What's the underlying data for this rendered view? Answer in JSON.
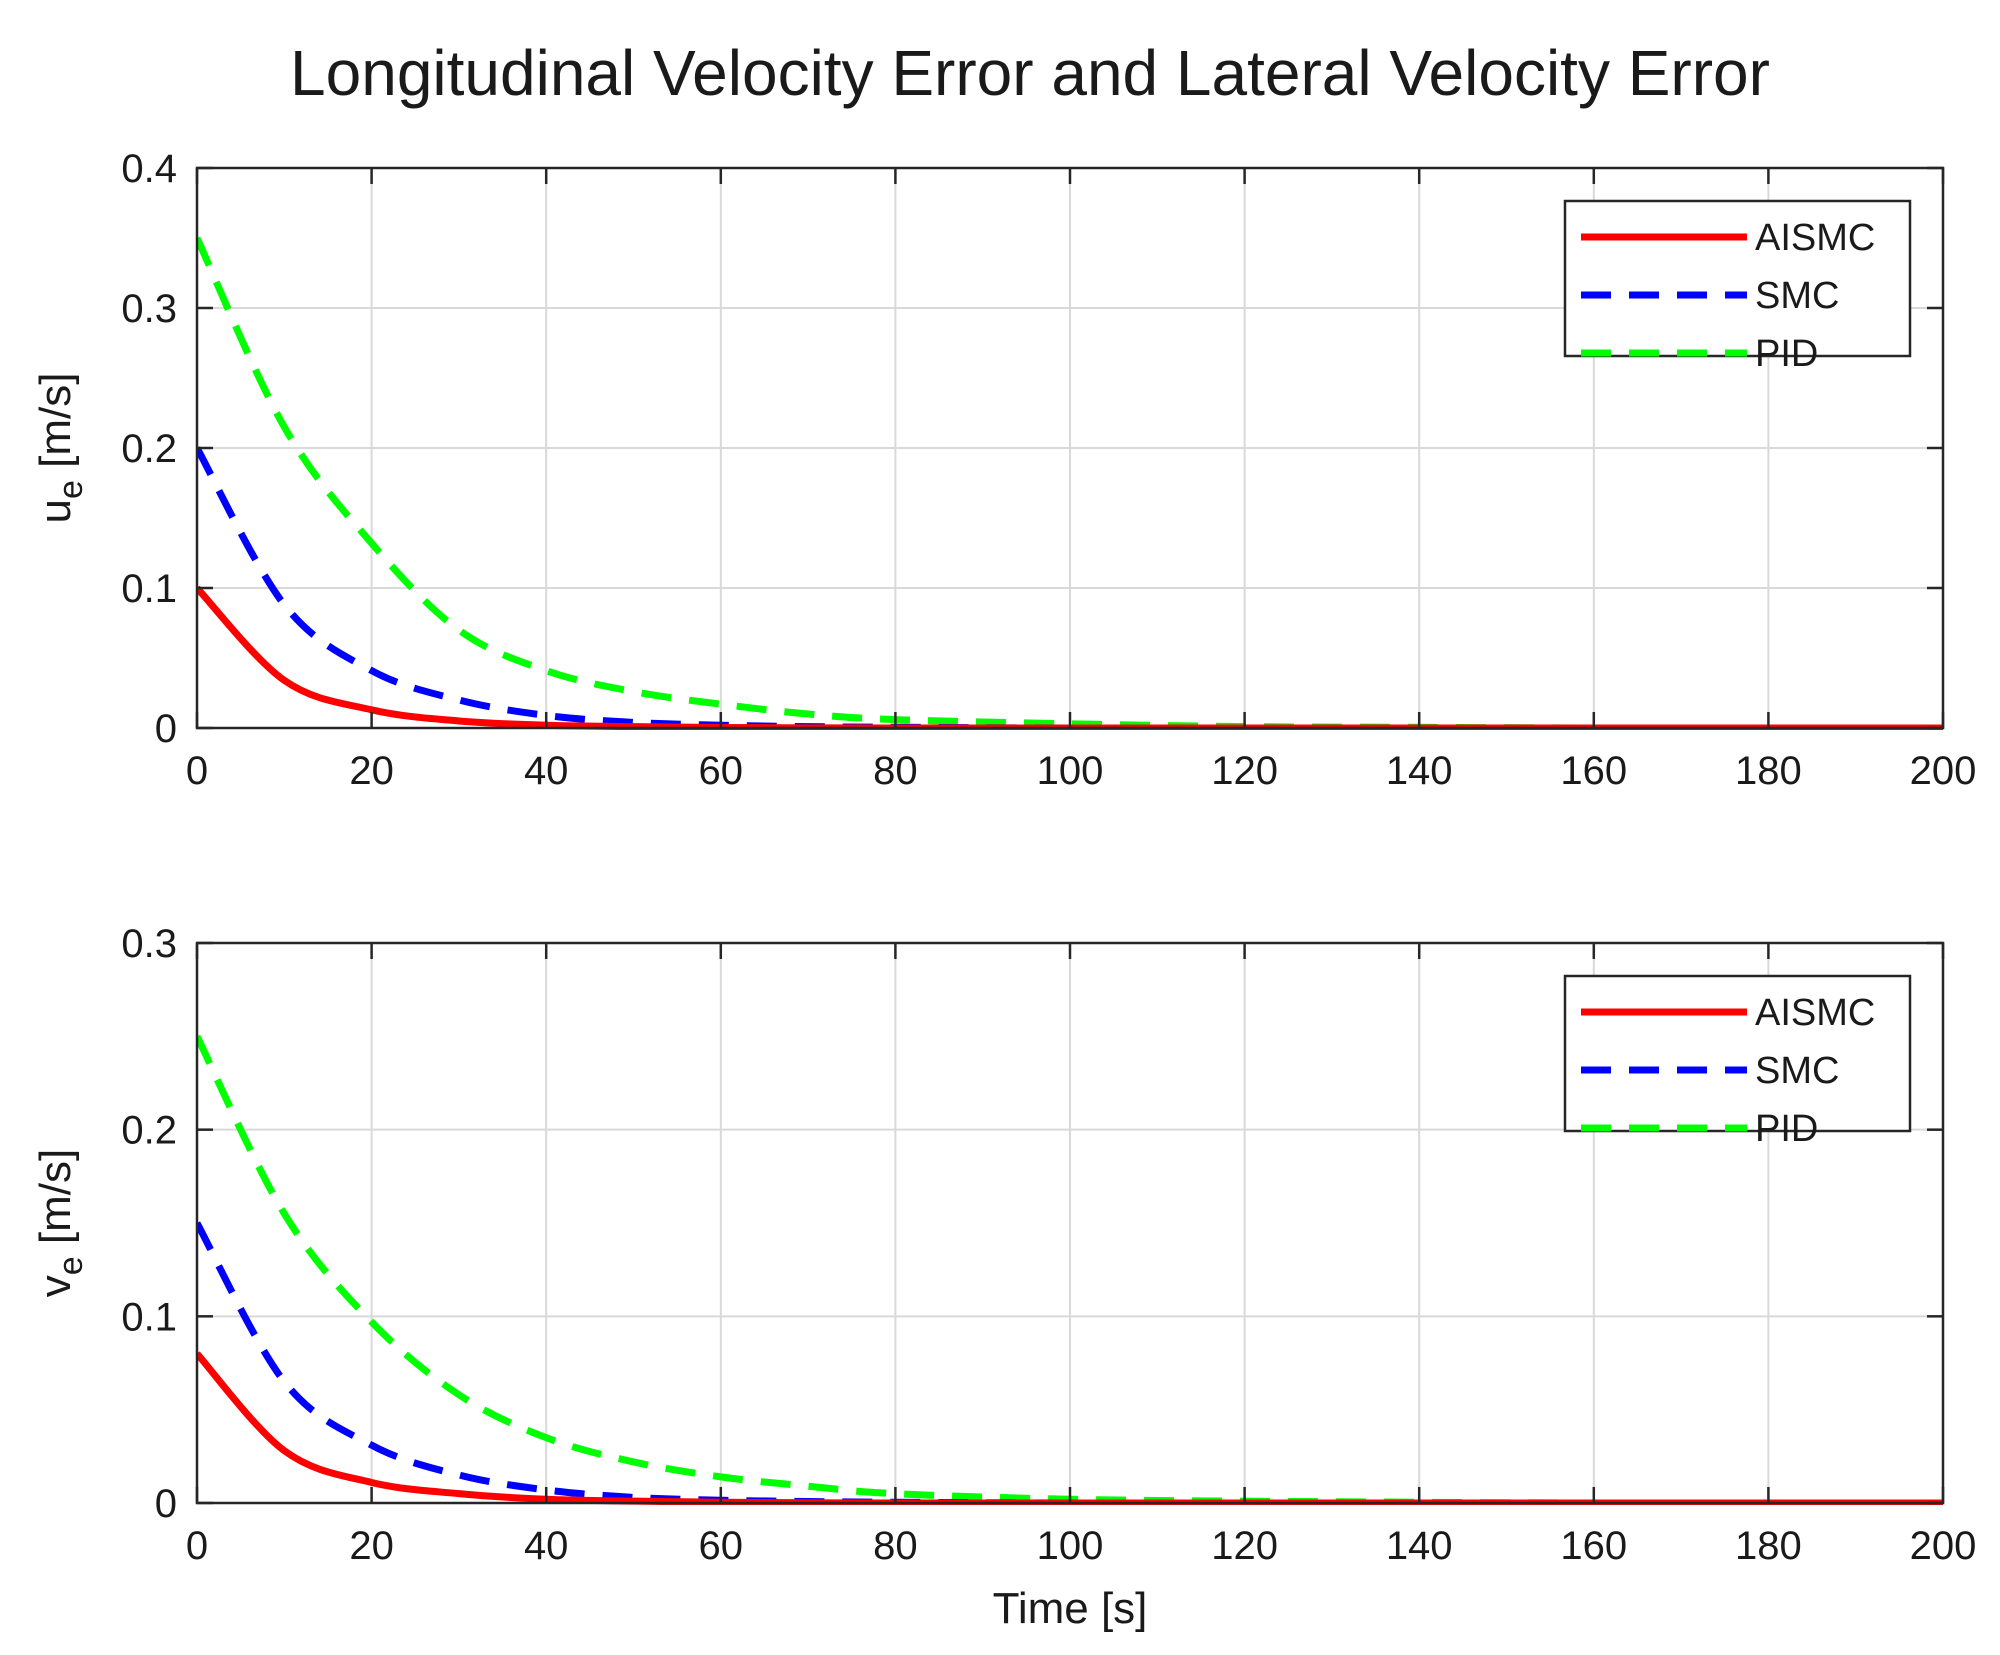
{
  "figure_title": "Longitudinal Velocity Error and Lateral Velocity Error",
  "chart_data": [
    {
      "type": "line",
      "ylabel_main": "u",
      "ylabel_sub": "e",
      "ylabel_unit": "[m/s]",
      "xlabel": "",
      "xlim": [
        0,
        200
      ],
      "ylim": [
        0,
        0.4
      ],
      "x_ticks": [
        0,
        20,
        40,
        60,
        80,
        100,
        120,
        140,
        160,
        180,
        200
      ],
      "x_tick_labels": [
        "0",
        "20",
        "40",
        "60",
        "80",
        "100",
        "120",
        "140",
        "160",
        "180",
        "200"
      ],
      "y_ticks": [
        0,
        0.1,
        0.2,
        0.3,
        0.4
      ],
      "y_tick_labels": [
        "0",
        "0.1",
        "0.2",
        "0.3",
        "0.4"
      ],
      "grid": true,
      "legend_position": "top-right",
      "x": [
        0,
        10,
        20,
        30,
        40,
        50,
        60,
        70,
        80,
        100,
        120,
        140,
        160,
        180,
        200
      ],
      "series": [
        {
          "name": "AISMC",
          "color": "#ff0000",
          "style": "solid",
          "values": [
            0.1,
            0.034,
            0.013,
            0.005,
            0.002,
            0.001,
            0.0004,
            0.0001,
            0,
            0,
            0,
            0,
            0,
            0,
            0
          ]
        },
        {
          "name": "SMC",
          "color": "#0000ff",
          "style": "dashed",
          "values": [
            0.2,
            0.088,
            0.041,
            0.02,
            0.009,
            0.004,
            0.002,
            0.001,
            0.0005,
            0,
            0,
            0,
            0,
            0,
            0
          ]
        },
        {
          "name": "PID",
          "color": "#00ff00",
          "style": "dashed",
          "values": [
            0.35,
            0.215,
            0.132,
            0.07,
            0.041,
            0.026,
            0.017,
            0.01,
            0.006,
            0.003,
            0.001,
            0.0005,
            0,
            0,
            0
          ]
        }
      ]
    },
    {
      "type": "line",
      "ylabel_main": "v",
      "ylabel_sub": "e",
      "ylabel_unit": "[m/s]",
      "xlabel": "Time [s]",
      "xlim": [
        0,
        200
      ],
      "ylim": [
        0,
        0.3
      ],
      "x_ticks": [
        0,
        20,
        40,
        60,
        80,
        100,
        120,
        140,
        160,
        180,
        200
      ],
      "x_tick_labels": [
        "0",
        "20",
        "40",
        "60",
        "80",
        "100",
        "120",
        "140",
        "160",
        "180",
        "200"
      ],
      "y_ticks": [
        0,
        0.1,
        0.2,
        0.3
      ],
      "y_tick_labels": [
        "0",
        "0.1",
        "0.2",
        "0.3"
      ],
      "grid": true,
      "legend_position": "top-right",
      "x": [
        0,
        10,
        20,
        30,
        40,
        50,
        60,
        70,
        80,
        100,
        120,
        140,
        160,
        180,
        200
      ],
      "series": [
        {
          "name": "AISMC",
          "color": "#ff0000",
          "style": "solid",
          "values": [
            0.08,
            0.028,
            0.011,
            0.005,
            0.002,
            0.001,
            0.0004,
            0.0001,
            0,
            0,
            0,
            0,
            0,
            0,
            0
          ]
        },
        {
          "name": "SMC",
          "color": "#0000ff",
          "style": "dashed",
          "values": [
            0.15,
            0.065,
            0.031,
            0.015,
            0.007,
            0.003,
            0.0015,
            0.0008,
            0.0004,
            0,
            0,
            0,
            0,
            0,
            0
          ]
        },
        {
          "name": "PID",
          "color": "#00ff00",
          "style": "dashed",
          "values": [
            0.25,
            0.155,
            0.097,
            0.058,
            0.035,
            0.022,
            0.014,
            0.009,
            0.005,
            0.002,
            0.001,
            0.0004,
            0,
            0,
            0
          ]
        }
      ]
    }
  ]
}
